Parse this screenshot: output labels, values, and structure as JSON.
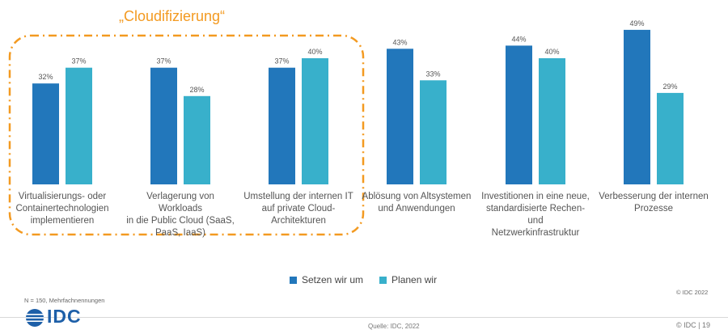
{
  "chart_data": {
    "type": "bar",
    "title": "„Cloudifizierung“",
    "categories": [
      "Virtualisierungs- oder Containertechnologien implementieren",
      "Verlagerung von Workloads in die Public Cloud (SaaS, PaaS, IaaS)",
      "Umstellung der internen IT auf private Cloud-Architekturen",
      "Ablösung von Altsystemen und Anwendungen",
      "Investitionen in eine neue, standardisierte Rechen- und Netzwerkinfrastruktur",
      "Verbesserung der internen Prozesse"
    ],
    "category_lines": [
      [
        "Virtualisierungs- oder",
        "Containertechnologien",
        "implementieren"
      ],
      [
        "Verlagerung von Workloads",
        "in die Public Cloud (SaaS,",
        "PaaS, IaaS)"
      ],
      [
        "Umstellung der internen IT",
        "auf private Cloud-",
        "Architekturen"
      ],
      [
        "Ablösung von Altsystemen",
        "und Anwendungen"
      ],
      [
        "Investitionen in eine neue,",
        "standardisierte Rechen- und",
        "Netzwerkinfrastruktur"
      ],
      [
        "Verbesserung der internen",
        "Prozesse"
      ]
    ],
    "series": [
      {
        "name": "Setzen wir um",
        "color": "#2277bb",
        "values": [
          32,
          37,
          37,
          43,
          44,
          49
        ]
      },
      {
        "name": "Planen wir",
        "color": "#38b0cb",
        "values": [
          37,
          28,
          40,
          33,
          40,
          29
        ]
      }
    ],
    "value_suffix": "%",
    "ylim": [
      0,
      50
    ],
    "highlight": {
      "label": "„Cloudifizierung“",
      "categories": [
        0,
        1,
        2
      ],
      "color": "#f39a21"
    }
  },
  "notes": {
    "sample": "N = 150, Mehrfachnennungen",
    "copyright": "© IDC 2022"
  },
  "footer": {
    "logo_text": "IDC",
    "source": "Quelle: IDC, 2022",
    "page": "© IDC |  19"
  }
}
